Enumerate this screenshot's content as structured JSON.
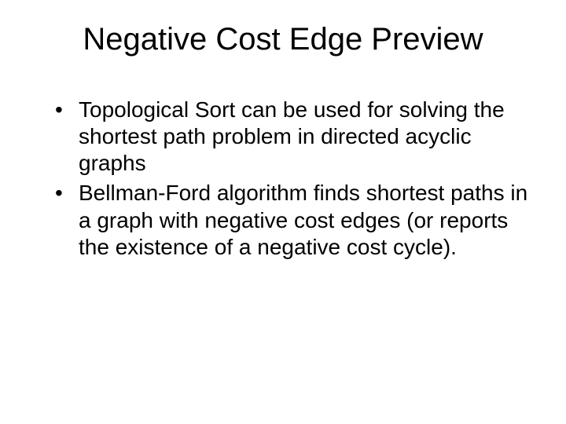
{
  "slide": {
    "title": "Negative Cost Edge Preview",
    "bullets": [
      "Topological Sort can be used for solving the shortest path problem in directed acyclic graphs",
      "Bellman-Ford algorithm finds shortest paths in a graph with negative cost edges (or reports the existence of a negative cost cycle)."
    ],
    "title_fontsize": 40,
    "body_fontsize": 28,
    "text_color": "#000000",
    "background_color": "#ffffff"
  }
}
